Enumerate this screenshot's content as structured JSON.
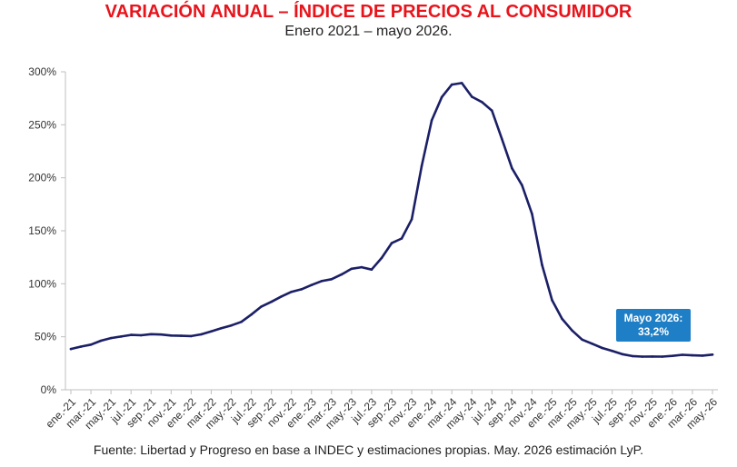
{
  "colors": {
    "title": "#e8141c",
    "line": "#1b1f66",
    "callout": "#1f7fc6",
    "axis": "#bfbfbf"
  },
  "header": {
    "title": "VARIACIÓN ANUAL – ÍNDICE DE PRECIOS AL CONSUMIDOR",
    "subtitle": "Enero 2021 – mayo 2026."
  },
  "footer": {
    "source": "Fuente: Libertad y Progreso en base a INDEC y estimaciones propias. May. 2026 estimación LyP."
  },
  "callout": {
    "line1": "Mayo 2026:",
    "line2": "33,2%"
  },
  "chart_data": {
    "type": "line",
    "title": "VARIACIÓN ANUAL – ÍNDICE DE PRECIOS AL CONSUMIDOR",
    "subtitle": "Enero 2021 – mayo 2026.",
    "xlabel": "",
    "ylabel": "",
    "ylim": [
      0,
      300
    ],
    "y_ticks": [
      "0%",
      "50%",
      "100%",
      "150%",
      "200%",
      "250%",
      "300%"
    ],
    "x_tick_labels": [
      "ene.-21",
      "mar.-21",
      "may.-21",
      "jul.-21",
      "sep.-21",
      "nov.-21",
      "ene.-22",
      "mar.-22",
      "may.-22",
      "jul.-22",
      "sep.-22",
      "nov.-22",
      "ene.-23",
      "mar.-23",
      "may.-23",
      "jul.-23",
      "sep.-23",
      "nov.-23",
      "ene.-24",
      "mar.-24",
      "may.-24",
      "jul.-24",
      "sep.-24",
      "nov.-24",
      "ene.-25",
      "mar.-25",
      "may.-25",
      "jul.-25",
      "sep.-25",
      "nov.-25",
      "ene.-26",
      "mar.-26",
      "may.-26"
    ],
    "grid": false,
    "legend": "none",
    "categories": [
      "ene.-21",
      "feb.-21",
      "mar.-21",
      "abr.-21",
      "may.-21",
      "jun.-21",
      "jul.-21",
      "ago.-21",
      "sep.-21",
      "oct.-21",
      "nov.-21",
      "dic.-21",
      "ene.-22",
      "feb.-22",
      "mar.-22",
      "abr.-22",
      "may.-22",
      "jun.-22",
      "jul.-22",
      "ago.-22",
      "sep.-22",
      "oct.-22",
      "nov.-22",
      "dic.-22",
      "ene.-23",
      "feb.-23",
      "mar.-23",
      "abr.-23",
      "may.-23",
      "jun.-23",
      "jul.-23",
      "ago.-23",
      "sep.-23",
      "oct.-23",
      "nov.-23",
      "dic.-23",
      "ene.-24",
      "feb.-24",
      "mar.-24",
      "abr.-24",
      "may.-24",
      "jun.-24",
      "jul.-24",
      "ago.-24",
      "sep.-24",
      "oct.-24",
      "nov.-24",
      "dic.-24",
      "ene.-25",
      "feb.-25",
      "mar.-25",
      "abr.-25",
      "may.-25",
      "jun.-25",
      "jul.-25",
      "ago.-25",
      "sep.-25",
      "oct.-25",
      "nov.-25",
      "dic.-25",
      "ene.-26",
      "feb.-26",
      "mar.-26",
      "abr.-26",
      "may.-26"
    ],
    "series": [
      {
        "values": [
          38.5,
          40.7,
          42.6,
          46.3,
          48.8,
          50.2,
          51.8,
          51.4,
          52.5,
          52.1,
          51.2,
          50.9,
          50.7,
          52.3,
          55.1,
          58.0,
          60.7,
          64.0,
          71.0,
          78.5,
          83.0,
          88.0,
          92.4,
          94.8,
          98.8,
          102.5,
          104.3,
          108.8,
          114.2,
          115.6,
          113.4,
          124.4,
          138.3,
          142.7,
          160.9,
          211.4,
          254.2,
          276.2,
          287.9,
          289.4,
          276.4,
          271.5,
          263.4,
          236.7,
          209.0,
          193.0,
          166.0,
          117.8,
          84.5,
          66.9,
          55.9,
          47.3,
          43.5,
          39.4,
          36.6,
          33.6,
          31.8,
          31.3,
          31.4,
          31.3,
          32.0,
          33.0,
          32.5,
          32.2,
          33.2
        ]
      }
    ],
    "annotations": [
      "Mayo 2026:",
      "33,2%"
    ]
  }
}
